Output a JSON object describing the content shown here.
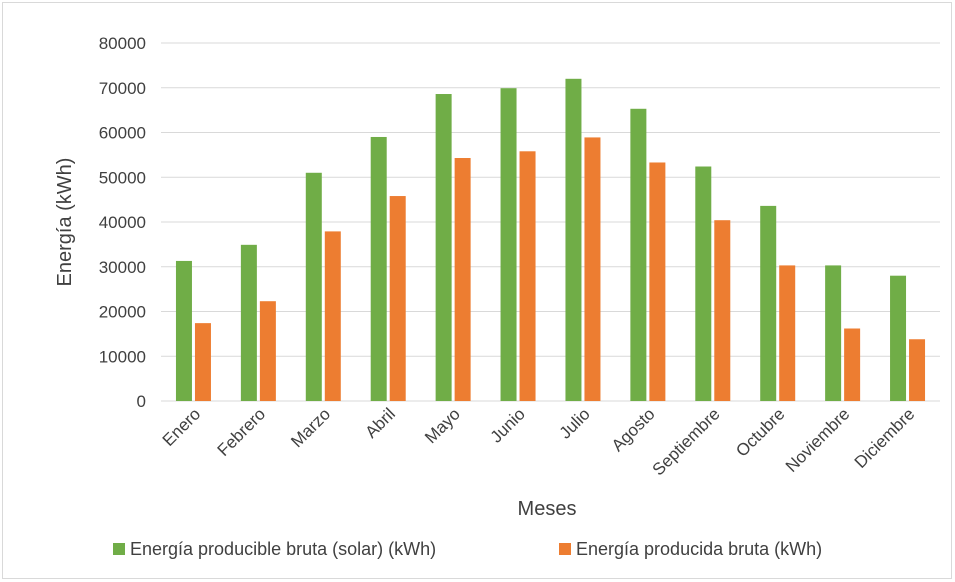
{
  "chart_data": {
    "type": "bar",
    "title": "",
    "xlabel": "Meses",
    "ylabel": "Energía (kWh)",
    "ylim": [
      0,
      80000
    ],
    "yticks": [
      0,
      10000,
      20000,
      30000,
      40000,
      50000,
      60000,
      70000,
      80000
    ],
    "grid": true,
    "legend_position": "bottom",
    "categories": [
      "Enero",
      "Febrero",
      "Marzo",
      "Abril",
      "Mayo",
      "Junio",
      "Julio",
      "Agosto",
      "Septiembre",
      "Octubre",
      "Noviembre",
      "Diciembre"
    ],
    "series": [
      {
        "name": "Energía producible bruta (solar) (kWh)",
        "color": "#70ad47",
        "values": [
          31300,
          34900,
          51000,
          59000,
          68600,
          69900,
          72000,
          65300,
          52400,
          43600,
          30300,
          28000
        ]
      },
      {
        "name": "Energía producida bruta (kWh)",
        "color": "#ed7d31",
        "values": [
          17400,
          22300,
          37900,
          45800,
          54300,
          55800,
          58900,
          53300,
          40400,
          30300,
          16200,
          13800
        ]
      }
    ]
  }
}
